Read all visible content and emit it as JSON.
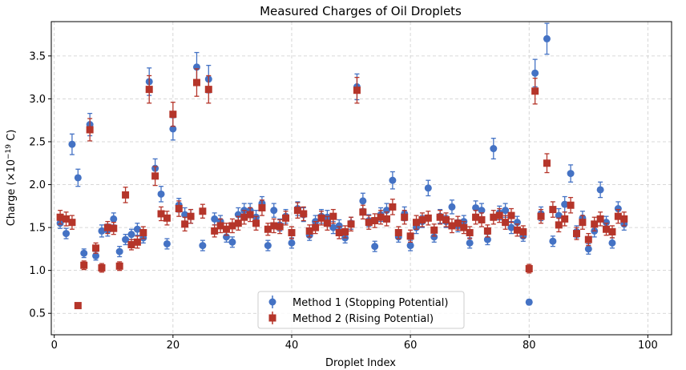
{
  "chart_data": {
    "type": "scatter",
    "title": "Measured Charges of Oil Droplets",
    "xlabel": "Droplet Index",
    "ylabel_main": "Charge (×10",
    "ylabel_sup": "−19",
    "ylabel_tail": " C)",
    "xlim": [
      -0.5,
      104
    ],
    "ylim": [
      0.25,
      3.9
    ],
    "xticks": [
      0,
      20,
      40,
      60,
      80,
      100
    ],
    "yticks": [
      0.5,
      1.0,
      1.5,
      2.0,
      2.5,
      3.0,
      3.5
    ],
    "xtick_labels": [
      "0",
      "20",
      "40",
      "60",
      "80",
      "100"
    ],
    "ytick_labels": [
      "0.5",
      "1.0",
      "1.5",
      "2.0",
      "2.5",
      "3.0",
      "3.5"
    ],
    "grid": true,
    "legend_position": "bottom-center",
    "series": [
      {
        "name": "Method 1 (Stopping Potential)",
        "marker": "circle",
        "color": "#4472C4",
        "x": [
          1,
          2,
          3,
          4,
          5,
          6,
          7,
          8,
          9,
          10,
          11,
          12,
          13,
          14,
          15,
          16,
          17,
          18,
          19,
          20,
          21,
          22,
          23,
          24,
          25,
          26,
          27,
          28,
          29,
          30,
          31,
          32,
          33,
          34,
          35,
          36,
          37,
          38,
          39,
          40,
          41,
          42,
          43,
          44,
          45,
          46,
          47,
          48,
          49,
          50,
          51,
          52,
          53,
          54,
          55,
          56,
          57,
          58,
          59,
          60,
          61,
          62,
          63,
          64,
          65,
          66,
          67,
          68,
          69,
          70,
          71,
          72,
          73,
          74,
          75,
          76,
          77,
          78,
          79,
          80,
          81,
          82,
          83,
          84,
          85,
          86,
          87,
          88,
          89,
          90,
          91,
          92,
          93,
          94,
          95,
          96
        ],
        "y": [
          1.55,
          1.43,
          2.47,
          2.08,
          1.2,
          2.7,
          1.17,
          1.46,
          1.47,
          1.6,
          1.22,
          1.36,
          1.42,
          1.48,
          1.38,
          3.2,
          2.19,
          1.89,
          1.31,
          2.65,
          1.76,
          1.65,
          1.63,
          3.37,
          1.29,
          3.23,
          1.6,
          1.57,
          1.39,
          1.33,
          1.65,
          1.7,
          1.7,
          1.62,
          1.78,
          1.29,
          1.7,
          1.53,
          1.63,
          1.32,
          1.72,
          1.65,
          1.41,
          1.57,
          1.63,
          1.62,
          1.5,
          1.52,
          1.38,
          1.55,
          3.14,
          1.81,
          1.58,
          1.28,
          1.65,
          1.7,
          2.05,
          1.39,
          1.66,
          1.29,
          1.5,
          1.57,
          1.96,
          1.39,
          1.63,
          1.57,
          1.74,
          1.52,
          1.57,
          1.32,
          1.73,
          1.7,
          1.36,
          2.42,
          1.67,
          1.7,
          1.5,
          1.56,
          1.4,
          0.63,
          3.3,
          1.66,
          3.7,
          1.34,
          1.64,
          1.77,
          2.13,
          1.45,
          1.61,
          1.25,
          1.46,
          1.94,
          1.56,
          1.32,
          1.72,
          1.54
        ],
        "yerr": [
          0.06,
          0.06,
          0.12,
          0.1,
          0.05,
          0.13,
          0.05,
          0.07,
          0.07,
          0.07,
          0.06,
          0.06,
          0.06,
          0.07,
          0.06,
          0.16,
          0.11,
          0.09,
          0.06,
          0.13,
          0.08,
          0.08,
          0.08,
          0.17,
          0.06,
          0.16,
          0.07,
          0.07,
          0.06,
          0.06,
          0.08,
          0.08,
          0.08,
          0.08,
          0.08,
          0.06,
          0.08,
          0.07,
          0.08,
          0.06,
          0.08,
          0.08,
          0.06,
          0.07,
          0.08,
          0.08,
          0.07,
          0.07,
          0.06,
          0.07,
          0.15,
          0.09,
          0.07,
          0.06,
          0.08,
          0.08,
          0.1,
          0.06,
          0.08,
          0.06,
          0.07,
          0.07,
          0.09,
          0.06,
          0.08,
          0.07,
          0.08,
          0.07,
          0.07,
          0.06,
          0.08,
          0.08,
          0.06,
          0.12,
          0.08,
          0.08,
          0.07,
          0.07,
          0.06,
          0.03,
          0.16,
          0.08,
          0.18,
          0.06,
          0.08,
          0.09,
          0.1,
          0.07,
          0.08,
          0.06,
          0.07,
          0.09,
          0.07,
          0.06,
          0.08,
          0.07
        ]
      },
      {
        "name": "Method 2 (Rising Potential)",
        "marker": "square",
        "color": "#B5352A",
        "x": [
          1,
          2,
          3,
          4,
          5,
          6,
          7,
          8,
          9,
          10,
          11,
          12,
          13,
          14,
          15,
          16,
          17,
          18,
          19,
          20,
          21,
          22,
          23,
          24,
          25,
          26,
          27,
          28,
          29,
          30,
          31,
          32,
          33,
          34,
          35,
          36,
          37,
          38,
          39,
          40,
          41,
          42,
          43,
          44,
          45,
          46,
          47,
          48,
          49,
          50,
          51,
          52,
          53,
          54,
          55,
          56,
          57,
          58,
          59,
          60,
          61,
          62,
          63,
          64,
          65,
          66,
          67,
          68,
          69,
          70,
          71,
          72,
          73,
          74,
          75,
          76,
          77,
          78,
          79,
          80,
          81,
          82,
          83,
          84,
          85,
          86,
          87,
          88,
          89,
          90,
          91,
          92,
          93,
          94,
          95,
          96
        ],
        "y": [
          1.62,
          1.6,
          1.56,
          0.59,
          1.06,
          2.64,
          1.26,
          1.03,
          1.5,
          1.49,
          1.05,
          1.88,
          1.3,
          1.33,
          1.44,
          3.11,
          2.1,
          1.66,
          1.61,
          2.82,
          1.72,
          1.54,
          1.63,
          3.19,
          1.69,
          3.11,
          1.46,
          1.52,
          1.48,
          1.52,
          1.55,
          1.62,
          1.65,
          1.55,
          1.73,
          1.48,
          1.52,
          1.51,
          1.61,
          1.44,
          1.7,
          1.66,
          1.46,
          1.5,
          1.61,
          1.55,
          1.63,
          1.44,
          1.45,
          1.54,
          3.1,
          1.68,
          1.56,
          1.58,
          1.62,
          1.6,
          1.74,
          1.44,
          1.62,
          1.4,
          1.56,
          1.59,
          1.61,
          1.47,
          1.62,
          1.59,
          1.52,
          1.55,
          1.5,
          1.44,
          1.62,
          1.59,
          1.46,
          1.62,
          1.64,
          1.56,
          1.64,
          1.47,
          1.45,
          1.02,
          3.09,
          1.63,
          2.25,
          1.71,
          1.53,
          1.6,
          1.76,
          1.43,
          1.56,
          1.36,
          1.54,
          1.6,
          1.48,
          1.45,
          1.63,
          1.6
        ],
        "yerr": [
          0.08,
          0.08,
          0.08,
          0.03,
          0.05,
          0.13,
          0.06,
          0.05,
          0.07,
          0.07,
          0.05,
          0.09,
          0.06,
          0.07,
          0.07,
          0.16,
          0.11,
          0.08,
          0.08,
          0.14,
          0.09,
          0.08,
          0.08,
          0.16,
          0.08,
          0.16,
          0.07,
          0.08,
          0.07,
          0.08,
          0.08,
          0.08,
          0.08,
          0.08,
          0.09,
          0.07,
          0.08,
          0.08,
          0.08,
          0.07,
          0.09,
          0.08,
          0.07,
          0.07,
          0.08,
          0.08,
          0.08,
          0.07,
          0.07,
          0.08,
          0.15,
          0.08,
          0.08,
          0.08,
          0.08,
          0.08,
          0.09,
          0.07,
          0.08,
          0.07,
          0.08,
          0.08,
          0.08,
          0.07,
          0.08,
          0.08,
          0.08,
          0.08,
          0.07,
          0.07,
          0.08,
          0.08,
          0.07,
          0.08,
          0.08,
          0.08,
          0.08,
          0.07,
          0.07,
          0.05,
          0.15,
          0.08,
          0.11,
          0.09,
          0.08,
          0.08,
          0.09,
          0.07,
          0.08,
          0.07,
          0.08,
          0.08,
          0.07,
          0.07,
          0.08,
          0.08
        ]
      }
    ]
  }
}
